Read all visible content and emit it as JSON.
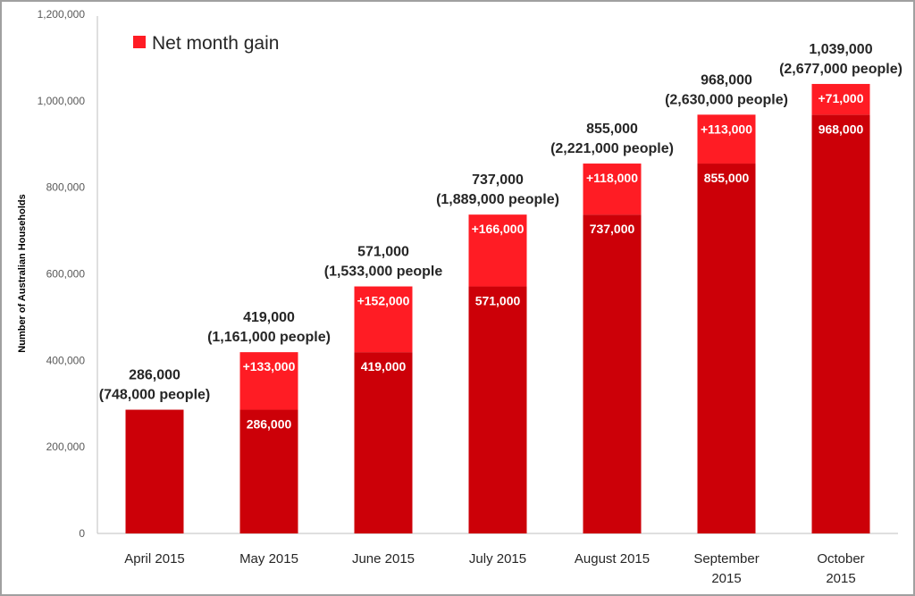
{
  "chart_data": {
    "type": "bar",
    "stacked": true,
    "title": "",
    "xlabel": "",
    "ylabel": "Number of Australian Households",
    "ylim": [
      0,
      1200000
    ],
    "yticks": [
      0,
      200000,
      400000,
      600000,
      800000,
      1000000,
      1200000
    ],
    "ytick_labels": [
      "0",
      "200,000",
      "400,000",
      "600,000",
      "800,000",
      "1,000,000",
      "1,200,000"
    ],
    "grid": false,
    "legend_position": "top-left",
    "categories": [
      [
        "April 2015"
      ],
      [
        "May 2015"
      ],
      [
        "June 2015"
      ],
      [
        "July 2015"
      ],
      [
        "August 2015"
      ],
      [
        "September",
        "2015"
      ],
      [
        "October",
        "2015"
      ]
    ],
    "series": [
      {
        "values": [
          286000,
          286000,
          419000,
          571000,
          737000,
          855000,
          968000
        ],
        "color": "#cc0008",
        "labels": [
          "",
          "286,000",
          "419,000",
          "571,000",
          "737,000",
          "855,000",
          "968,000"
        ]
      },
      {
        "name": "Net month gain",
        "values": [
          0,
          133000,
          152000,
          166000,
          118000,
          113000,
          71000
        ],
        "color": "#ff1c24",
        "labels": [
          "",
          "+133,000",
          "+152,000",
          "+166,000",
          "+118,000",
          "+113,000",
          "+71,000"
        ]
      }
    ],
    "total_labels": [
      [
        "286,000",
        "(748,000 people)"
      ],
      [
        "419,000",
        "(1,161,000 people)"
      ],
      [
        "571,000",
        "(1,533,000 people"
      ],
      [
        "737,000",
        "(1,889,000 people)"
      ],
      [
        "855,000",
        "(2,221,000 people)"
      ],
      [
        "968,000",
        "(2,630,000 people)"
      ],
      [
        "1,039,000",
        "(2,677,000 people)"
      ]
    ]
  }
}
